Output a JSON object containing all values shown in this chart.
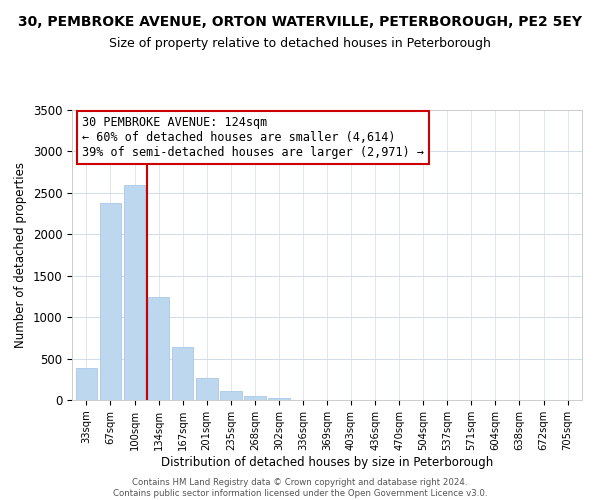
{
  "title": "30, PEMBROKE AVENUE, ORTON WATERVILLE, PETERBOROUGH, PE2 5EY",
  "subtitle": "Size of property relative to detached houses in Peterborough",
  "xlabel": "Distribution of detached houses by size in Peterborough",
  "ylabel": "Number of detached properties",
  "bar_color": "#bdd7ee",
  "bar_edge_color": "#9dc3e6",
  "vline_color": "#cc0000",
  "vline_x_data": 2.5,
  "categories": [
    "33sqm",
    "67sqm",
    "100sqm",
    "134sqm",
    "167sqm",
    "201sqm",
    "235sqm",
    "268sqm",
    "302sqm",
    "336sqm",
    "369sqm",
    "403sqm",
    "436sqm",
    "470sqm",
    "504sqm",
    "537sqm",
    "571sqm",
    "604sqm",
    "638sqm",
    "672sqm",
    "705sqm"
  ],
  "values": [
    390,
    2380,
    2600,
    1240,
    640,
    260,
    105,
    50,
    30,
    0,
    0,
    0,
    0,
    0,
    0,
    0,
    0,
    0,
    0,
    0,
    0
  ],
  "ylim": [
    0,
    3500
  ],
  "yticks": [
    0,
    500,
    1000,
    1500,
    2000,
    2500,
    3000,
    3500
  ],
  "annotation_title": "30 PEMBROKE AVENUE: 124sqm",
  "annotation_line1": "← 60% of detached houses are smaller (4,614)",
  "annotation_line2": "39% of semi-detached houses are larger (2,971) →",
  "annotation_box_color": "#ffffff",
  "annotation_box_edge": "#cc0000",
  "footer_line1": "Contains HM Land Registry data © Crown copyright and database right 2024.",
  "footer_line2": "Contains public sector information licensed under the Open Government Licence v3.0.",
  "background_color": "#ffffff",
  "grid_color": "#d0dce8",
  "title_fontsize": 10,
  "subtitle_fontsize": 9
}
